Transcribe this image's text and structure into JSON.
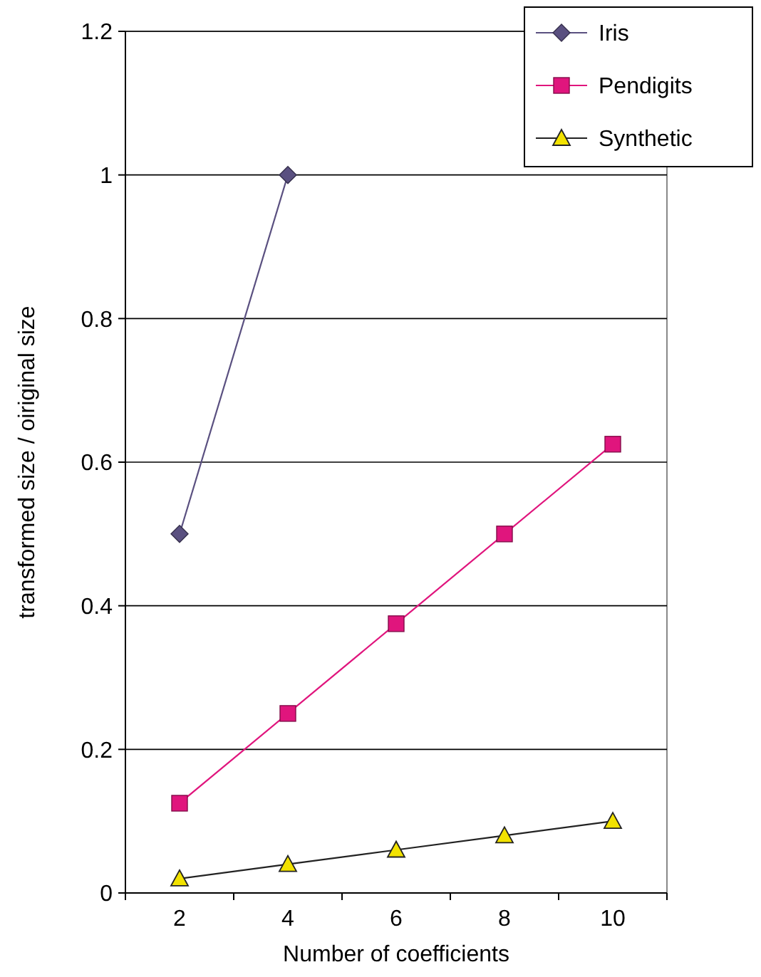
{
  "chart_data": {
    "type": "line",
    "xlabel": "Number of coefficients",
    "ylabel": "transformed size / oiriginal size",
    "categories": [
      "2",
      "4",
      "6",
      "8",
      "10"
    ],
    "series": [
      {
        "name": "Iris",
        "color": "#5a5080",
        "marker": "diamond",
        "values": [
          0.5,
          1,
          null,
          null,
          null
        ]
      },
      {
        "name": "Pendigits",
        "color": "#e0157d",
        "marker": "square",
        "values": [
          0.125,
          0.25,
          0.375,
          0.5,
          0.625
        ]
      },
      {
        "name": "Synthetic",
        "color": "#f2e200",
        "marker": "triangle",
        "values": [
          0.02,
          0.04,
          0.06,
          0.08,
          0.1
        ]
      }
    ],
    "ylim": [
      0,
      1.2
    ],
    "yticks": [
      0,
      0.2,
      0.4,
      0.6,
      0.8,
      1,
      1.2
    ],
    "grid": "y",
    "legend": "top right"
  }
}
